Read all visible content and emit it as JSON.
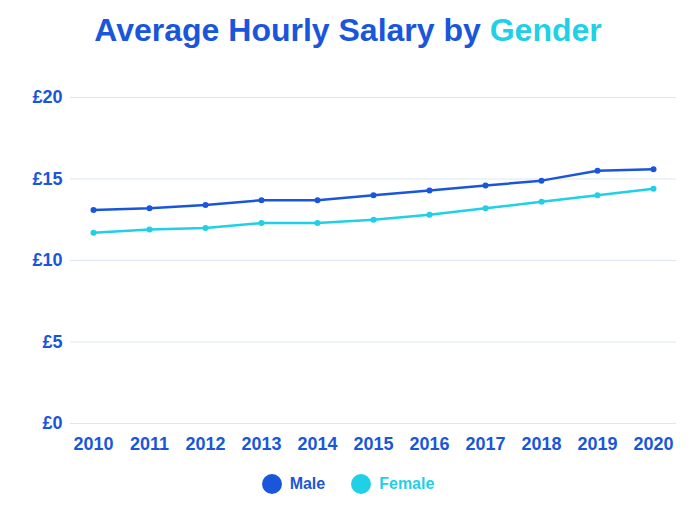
{
  "chart_data": {
    "type": "line",
    "title": "Average Hourly Salary by Gender",
    "categories": [
      "2010",
      "2011",
      "2012",
      "2013",
      "2014",
      "2015",
      "2016",
      "2017",
      "2018",
      "2019",
      "2020"
    ],
    "series": [
      {
        "name": "Male",
        "color": "#1a56db",
        "marker": "circle",
        "line_style": "solid",
        "values": [
          13.1,
          13.2,
          13.4,
          13.7,
          13.7,
          14.0,
          14.3,
          14.6,
          14.9,
          15.5,
          15.6
        ]
      },
      {
        "name": "Female",
        "color": "#1fd0e6",
        "marker": "circle",
        "line_style": "solid",
        "values": [
          11.7,
          11.9,
          12.0,
          12.3,
          12.3,
          12.5,
          12.8,
          13.2,
          13.6,
          14.0,
          14.4
        ]
      }
    ],
    "ylim": [
      0,
      20
    ],
    "yticks": [
      {
        "value": 0,
        "label": "£0"
      },
      {
        "value": 5,
        "label": "£5"
      },
      {
        "value": 10,
        "label": "£10"
      },
      {
        "value": 15,
        "label": "£15"
      },
      {
        "value": 20,
        "label": "£20"
      }
    ],
    "grid": true,
    "legend": "bottom"
  }
}
